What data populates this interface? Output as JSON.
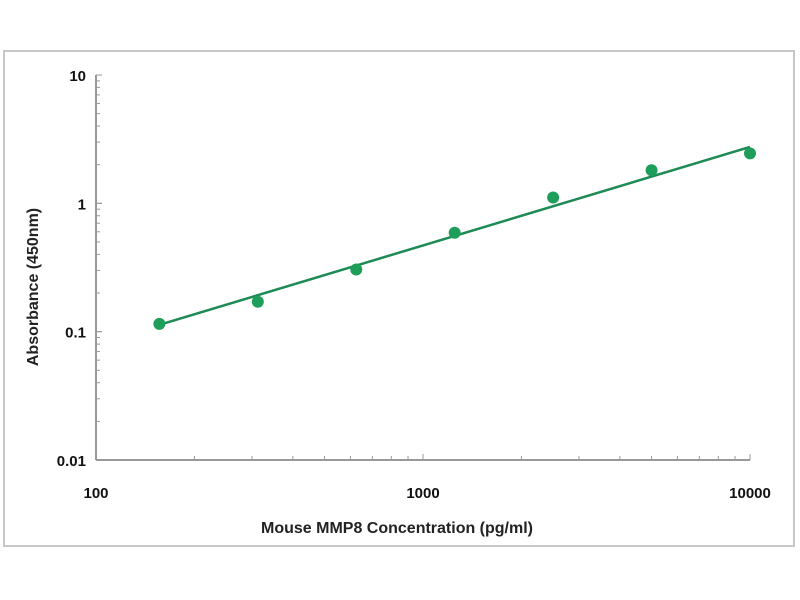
{
  "chart_data": {
    "type": "scatter",
    "title": "",
    "xlabel": "Mouse MMP8  Concentration (pg/ml)",
    "ylabel": "Absorbance (450nm)",
    "x_scale": "log",
    "y_scale": "log",
    "xlim": [
      100,
      10000
    ],
    "ylim": [
      0.01,
      10
    ],
    "x_ticks": [
      "100",
      "1000",
      "10000"
    ],
    "y_ticks": [
      "10",
      "1",
      "0.1",
      "0.01"
    ],
    "grid": false,
    "series": [
      {
        "x": [
          156.25,
          312.5,
          625,
          1250,
          2500,
          5000,
          10000
        ],
        "y": [
          0.115,
          0.171,
          0.305,
          0.59,
          1.11,
          1.81,
          2.45
        ],
        "color": "#1e9e5a"
      }
    ],
    "fit_line": {
      "x": [
        156.25,
        10000
      ],
      "y": [
        0.113,
        2.75
      ],
      "color": "#1e8a55"
    }
  }
}
